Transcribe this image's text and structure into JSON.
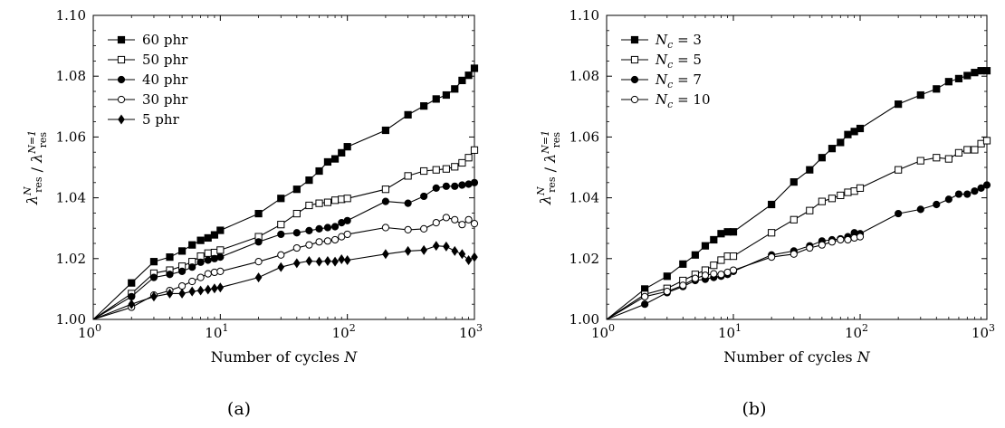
{
  "figure": {
    "captions": [
      "(a)",
      "(b)"
    ]
  },
  "chart_data": [
    {
      "type": "line",
      "panel": "(a)",
      "title": "",
      "xlabel": "Number of cycles N",
      "ylabel": "λres^N / λres^(N=1)",
      "xscale": "log",
      "xlim": [
        1,
        1000
      ],
      "ylim": [
        1.0,
        1.1
      ],
      "x_ticks": [
        1,
        10,
        100,
        1000
      ],
      "x_tick_labels": [
        "10^0",
        "10^1",
        "10^2",
        "10^3"
      ],
      "y_ticks": [
        1.0,
        1.02,
        1.04,
        1.06,
        1.08,
        1.1
      ],
      "y_tick_labels": [
        "1.00",
        "1.02",
        "1.04",
        "1.06",
        "1.08",
        "1.10"
      ],
      "grid": false,
      "legend_position": "top-left",
      "series": [
        {
          "name": "60 phr",
          "marker": "square-filled",
          "x": [
            1,
            2,
            3,
            4,
            5,
            6,
            7,
            8,
            9,
            10,
            20,
            30,
            40,
            50,
            60,
            70,
            80,
            90,
            100,
            200,
            300,
            400,
            500,
            600,
            700,
            800,
            900,
            1000
          ],
          "y": [
            1.0,
            1.012,
            1.019,
            1.0205,
            1.0225,
            1.0245,
            1.026,
            1.0268,
            1.0278,
            1.0293,
            1.0348,
            1.0398,
            1.0428,
            1.0458,
            1.0488,
            1.0518,
            1.0528,
            1.0548,
            1.0568,
            1.0622,
            1.0673,
            1.0702,
            1.0725,
            1.0738,
            1.0758,
            1.0786,
            1.0803,
            1.0826
          ]
        },
        {
          "name": "50 phr",
          "marker": "square-open",
          "x": [
            1,
            2,
            3,
            4,
            5,
            6,
            7,
            8,
            9,
            10,
            20,
            30,
            40,
            50,
            60,
            70,
            80,
            90,
            100,
            200,
            300,
            400,
            500,
            600,
            700,
            800,
            900,
            1000
          ],
          "y": [
            1.0,
            1.0085,
            1.0152,
            1.0162,
            1.0175,
            1.019,
            1.0208,
            1.0218,
            1.022,
            1.0228,
            1.0272,
            1.0312,
            1.0348,
            1.0375,
            1.0382,
            1.0385,
            1.0392,
            1.0395,
            1.0398,
            1.0428,
            1.0472,
            1.0488,
            1.0492,
            1.0495,
            1.0502,
            1.0515,
            1.0532,
            1.0557
          ]
        },
        {
          "name": "40 phr",
          "marker": "circle-filled",
          "x": [
            1,
            2,
            3,
            4,
            5,
            6,
            7,
            8,
            9,
            10,
            20,
            30,
            40,
            50,
            60,
            70,
            80,
            90,
            100,
            200,
            300,
            400,
            500,
            600,
            700,
            800,
            900,
            1000
          ],
          "y": [
            1.0,
            1.0075,
            1.0138,
            1.0148,
            1.0158,
            1.0172,
            1.0188,
            1.0195,
            1.02,
            1.0205,
            1.0255,
            1.028,
            1.0285,
            1.0292,
            1.0298,
            1.0302,
            1.0305,
            1.0318,
            1.0325,
            1.0388,
            1.0382,
            1.0405,
            1.0432,
            1.0438,
            1.0438,
            1.0442,
            1.0445,
            1.045
          ]
        },
        {
          "name": "30 phr",
          "marker": "circle-open",
          "x": [
            1,
            2,
            3,
            4,
            5,
            6,
            7,
            8,
            9,
            10,
            20,
            30,
            40,
            50,
            60,
            70,
            80,
            90,
            100,
            200,
            300,
            400,
            500,
            600,
            700,
            800,
            900,
            1000
          ],
          "y": [
            1.0,
            1.004,
            1.008,
            1.0095,
            1.011,
            1.0125,
            1.0138,
            1.015,
            1.0155,
            1.0158,
            1.019,
            1.0212,
            1.0235,
            1.0245,
            1.0255,
            1.0258,
            1.0262,
            1.0272,
            1.028,
            1.0302,
            1.0295,
            1.0298,
            1.0318,
            1.0335,
            1.0328,
            1.0312,
            1.0328,
            1.0315
          ]
        },
        {
          "name": "5 phr",
          "marker": "diamond-filled",
          "x": [
            1,
            2,
            3,
            4,
            5,
            6,
            7,
            8,
            9,
            10,
            20,
            30,
            40,
            50,
            60,
            70,
            80,
            90,
            100,
            200,
            300,
            400,
            500,
            600,
            700,
            800,
            900,
            1000
          ],
          "y": [
            1.0,
            1.005,
            1.0075,
            1.0085,
            1.0085,
            1.0092,
            1.0095,
            1.0098,
            1.0102,
            1.0105,
            1.0138,
            1.0172,
            1.0185,
            1.0192,
            1.019,
            1.0192,
            1.019,
            1.0198,
            1.0195,
            1.0215,
            1.0225,
            1.0228,
            1.0242,
            1.024,
            1.0225,
            1.0215,
            1.0195,
            1.0205
          ]
        }
      ]
    },
    {
      "type": "line",
      "panel": "(b)",
      "title": "",
      "xlabel": "Number of cycles N",
      "ylabel": "λres^N / λres^(N=1)",
      "xscale": "log",
      "xlim": [
        1,
        1000
      ],
      "ylim": [
        1.0,
        1.1
      ],
      "x_ticks": [
        1,
        10,
        100,
        1000
      ],
      "x_tick_labels": [
        "10^0",
        "10^1",
        "10^2",
        "10^3"
      ],
      "y_ticks": [
        1.0,
        1.02,
        1.04,
        1.06,
        1.08,
        1.1
      ],
      "y_tick_labels": [
        "1.00",
        "1.02",
        "1.04",
        "1.06",
        "1.08",
        "1.10"
      ],
      "grid": false,
      "legend_position": "top-left",
      "series": [
        {
          "name": "N_c = 3",
          "marker": "square-filled",
          "x": [
            1,
            2,
            3,
            4,
            5,
            6,
            7,
            8,
            9,
            10,
            20,
            30,
            40,
            50,
            60,
            70,
            80,
            90,
            100,
            200,
            300,
            400,
            500,
            600,
            700,
            800,
            900,
            1000
          ],
          "y": [
            1.0,
            1.01,
            1.0142,
            1.0182,
            1.0212,
            1.0242,
            1.0262,
            1.0282,
            1.0288,
            1.0288,
            1.0378,
            1.0452,
            1.0492,
            1.0532,
            1.0562,
            1.0582,
            1.0608,
            1.0618,
            1.0628,
            1.0708,
            1.0738,
            1.0758,
            1.0782,
            1.0792,
            1.0802,
            1.0812,
            1.0818,
            1.0818
          ]
        },
        {
          "name": "N_c = 5",
          "marker": "square-open",
          "x": [
            1,
            2,
            3,
            4,
            5,
            6,
            7,
            8,
            9,
            10,
            20,
            30,
            40,
            50,
            60,
            70,
            80,
            90,
            100,
            200,
            300,
            400,
            500,
            600,
            700,
            800,
            900,
            1000
          ],
          "y": [
            1.0,
            1.0082,
            1.0102,
            1.0128,
            1.0148,
            1.0162,
            1.0178,
            1.0195,
            1.0208,
            1.0208,
            1.0285,
            1.0328,
            1.0358,
            1.0388,
            1.0398,
            1.0408,
            1.0418,
            1.0422,
            1.0432,
            1.0492,
            1.0522,
            1.0532,
            1.0528,
            1.0548,
            1.0558,
            1.0558,
            1.0578,
            1.0588
          ]
        },
        {
          "name": "N_c = 7",
          "marker": "circle-filled",
          "x": [
            1,
            2,
            3,
            4,
            5,
            6,
            7,
            8,
            9,
            10,
            20,
            30,
            40,
            50,
            60,
            70,
            80,
            90,
            100,
            200,
            300,
            400,
            500,
            600,
            700,
            800,
            900,
            1000
          ],
          "y": [
            1.0,
            1.005,
            1.0088,
            1.0108,
            1.0128,
            1.0132,
            1.0138,
            1.0142,
            1.0148,
            1.0158,
            1.0212,
            1.0225,
            1.0242,
            1.0258,
            1.0262,
            1.0265,
            1.0272,
            1.0285,
            1.0282,
            1.0348,
            1.0362,
            1.0378,
            1.0395,
            1.0412,
            1.0412,
            1.0422,
            1.0432,
            1.0442
          ]
        },
        {
          "name": "N_c = 10",
          "marker": "circle-open",
          "x": [
            1,
            2,
            3,
            4,
            5,
            6,
            7,
            8,
            9,
            10,
            20,
            30,
            40,
            50,
            60,
            70,
            80,
            90,
            100
          ],
          "y": [
            1.0,
            1.0075,
            1.0092,
            1.0112,
            1.0135,
            1.0145,
            1.015,
            1.0148,
            1.0155,
            1.0162,
            1.0205,
            1.0215,
            1.0235,
            1.0245,
            1.0255,
            1.0262,
            1.0262,
            1.0268,
            1.0272
          ]
        }
      ]
    }
  ]
}
